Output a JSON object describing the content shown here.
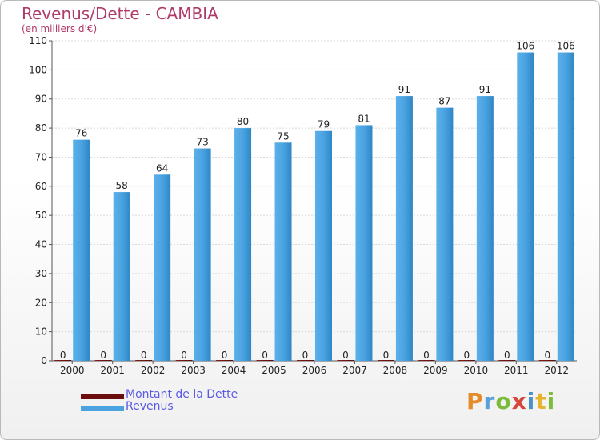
{
  "header": {
    "title": "Revenus/Dette - CAMBIA",
    "subtitle": "(en milliers d'€)"
  },
  "chart_data": {
    "type": "bar",
    "categories": [
      "2000",
      "2001",
      "2002",
      "2003",
      "2004",
      "2005",
      "2006",
      "2007",
      "2008",
      "2009",
      "2010",
      "2011",
      "2012"
    ],
    "series": [
      {
        "name": "Montant de la Dette",
        "color": "#6b0d0d",
        "values": [
          0,
          0,
          0,
          0,
          0,
          0,
          0,
          0,
          0,
          0,
          0,
          0,
          0
        ]
      },
      {
        "name": "Revenus",
        "color": "#4aa3e0",
        "values": [
          76,
          58,
          64,
          73,
          80,
          75,
          79,
          81,
          91,
          87,
          91,
          106,
          106
        ]
      }
    ],
    "ylim": [
      0,
      110
    ],
    "yticks": [
      0,
      10,
      20,
      30,
      40,
      50,
      60,
      70,
      80,
      90,
      100,
      110
    ],
    "grid": true,
    "legend": "bottom-left"
  },
  "legend": {
    "items": [
      {
        "label": "Montant de la Dette",
        "color": "#6b0d0d"
      },
      {
        "label": "Revenus",
        "color": "#4aa3e0"
      }
    ]
  },
  "logo": {
    "text": "Proxiti"
  }
}
